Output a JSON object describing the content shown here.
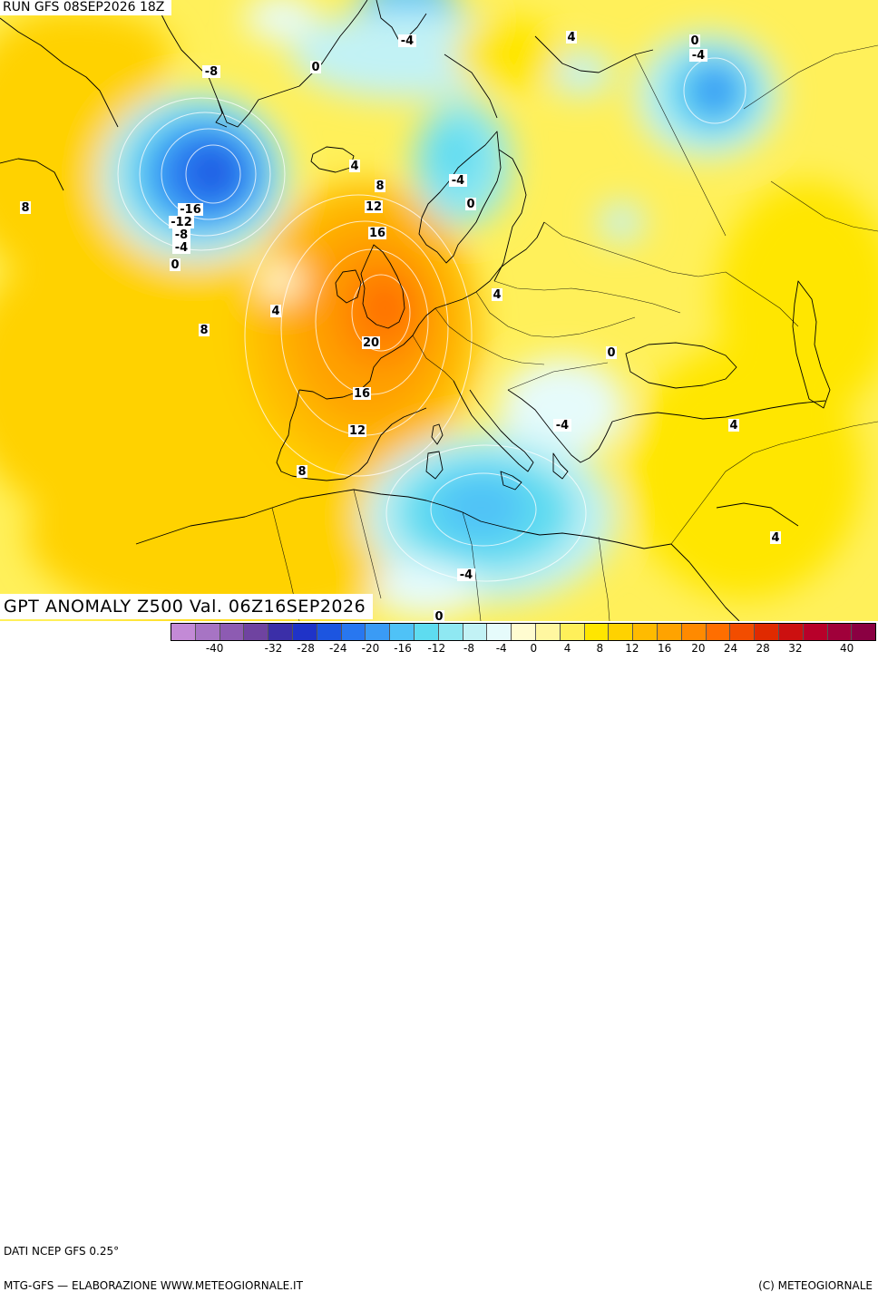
{
  "run_title": "RUN GFS 08SEP2026 18Z",
  "field_title": "GPT ANOMALY Z500 Val. 06Z16SEP2026",
  "source_label": "DATI NCEP GFS 0.25°",
  "credit_left": "MTG-GFS — ELABORAZIONE WWW.METEOGIORNALE.IT",
  "credit_right": "(C) METEOGIORNALE",
  "colorbar": {
    "tick_labels": [
      "-40",
      "-32",
      "-28",
      "-24",
      "-20",
      "-16",
      "-12",
      "-8",
      "-4",
      "0",
      "4",
      "8",
      "12",
      "16",
      "20",
      "24",
      "28",
      "32",
      "40"
    ],
    "colors": [
      "#c38ad6",
      "#a774c4",
      "#8d5bb2",
      "#6f43a0",
      "#3b2fa8",
      "#1f33c8",
      "#1c55e0",
      "#2877f0",
      "#3a9bf5",
      "#4fc2f7",
      "#5edcf0",
      "#8fe8f2",
      "#c2f2f5",
      "#e6fbfb",
      "#fffcd0",
      "#fff7a0",
      "#fff05a",
      "#ffe600",
      "#ffd200",
      "#ffbb00",
      "#ffa300",
      "#ff8a00",
      "#ff6e00",
      "#f24d00",
      "#e02a00",
      "#cc1010",
      "#b8002a",
      "#a0003a",
      "#8a0042"
    ]
  },
  "contour_labels": [
    {
      "text": "-8"
    },
    {
      "text": "0"
    },
    {
      "text": "-4"
    },
    {
      "text": "4"
    },
    {
      "text": "0"
    },
    {
      "text": "-4"
    },
    {
      "text": "4"
    },
    {
      "text": "8"
    },
    {
      "text": "12"
    },
    {
      "text": "16"
    },
    {
      "text": "-16"
    },
    {
      "text": "-12"
    },
    {
      "text": "-8"
    },
    {
      "text": "-4"
    },
    {
      "text": "0"
    },
    {
      "text": "8"
    },
    {
      "text": "-4"
    },
    {
      "text": "0"
    },
    {
      "text": "4"
    },
    {
      "text": "4"
    },
    {
      "text": "8"
    },
    {
      "text": "20"
    },
    {
      "text": "16"
    },
    {
      "text": "12"
    },
    {
      "text": "8"
    },
    {
      "text": "0"
    },
    {
      "text": "-4"
    },
    {
      "text": "4"
    },
    {
      "text": "4"
    },
    {
      "text": "-4"
    },
    {
      "text": "0"
    }
  ]
}
